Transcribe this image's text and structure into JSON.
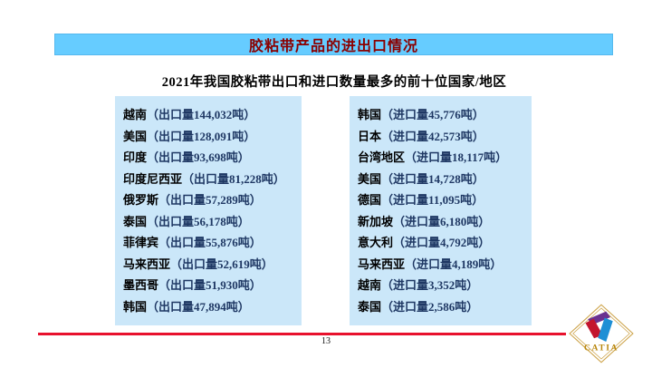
{
  "slide": {
    "title": "胶粘带产品的进出口情况",
    "subtitle": "2021年我国胶粘带出口和进口数量最多的前十位国家/地区",
    "page_number": "13"
  },
  "export_list": {
    "label": "出口量",
    "unit": "吨",
    "items": [
      {
        "name": "越南",
        "value": "144,032"
      },
      {
        "name": "美国",
        "value": "128,091"
      },
      {
        "name": "印度",
        "value": "93,698"
      },
      {
        "name": "印度尼西亚",
        "value": "81,228"
      },
      {
        "name": "俄罗斯",
        "value": "57,289"
      },
      {
        "name": "泰国",
        "value": "56,178"
      },
      {
        "name": "菲律宾",
        "value": "55,876"
      },
      {
        "name": "马来西亚",
        "value": "52,619"
      },
      {
        "name": "墨西哥",
        "value": "51,930"
      },
      {
        "name": "韩国",
        "value": "47,894"
      }
    ]
  },
  "import_list": {
    "label": "进口量",
    "unit": "吨",
    "items": [
      {
        "name": "韩国",
        "value": "45,776"
      },
      {
        "name": "日本",
        "value": "42,573"
      },
      {
        "name": "台湾地区",
        "value": "18,117"
      },
      {
        "name": "美国",
        "value": "14,728"
      },
      {
        "name": "德国",
        "value": "11,095"
      },
      {
        "name": "新加坡",
        "value": "6,180"
      },
      {
        "name": "意大利",
        "value": "4,792"
      },
      {
        "name": "马来西亚",
        "value": "4,189"
      },
      {
        "name": "越南",
        "value": "3,352"
      },
      {
        "name": "泰国",
        "value": "2,586"
      }
    ]
  },
  "punctuation": {
    "open_paren": "（",
    "close_paren": "）"
  },
  "logo": {
    "text": "CATIA"
  },
  "colors": {
    "header_bg": "#66CCFF",
    "title_text": "#8B0000",
    "box_bg": "#CBE7F9",
    "value_text": "#1F3864",
    "divider_line": "#E8112D",
    "logo_gold": "#B8860B",
    "logo_purple": "#6A3190",
    "logo_red": "#C3152E",
    "logo_blue": "#1E8FD5"
  }
}
